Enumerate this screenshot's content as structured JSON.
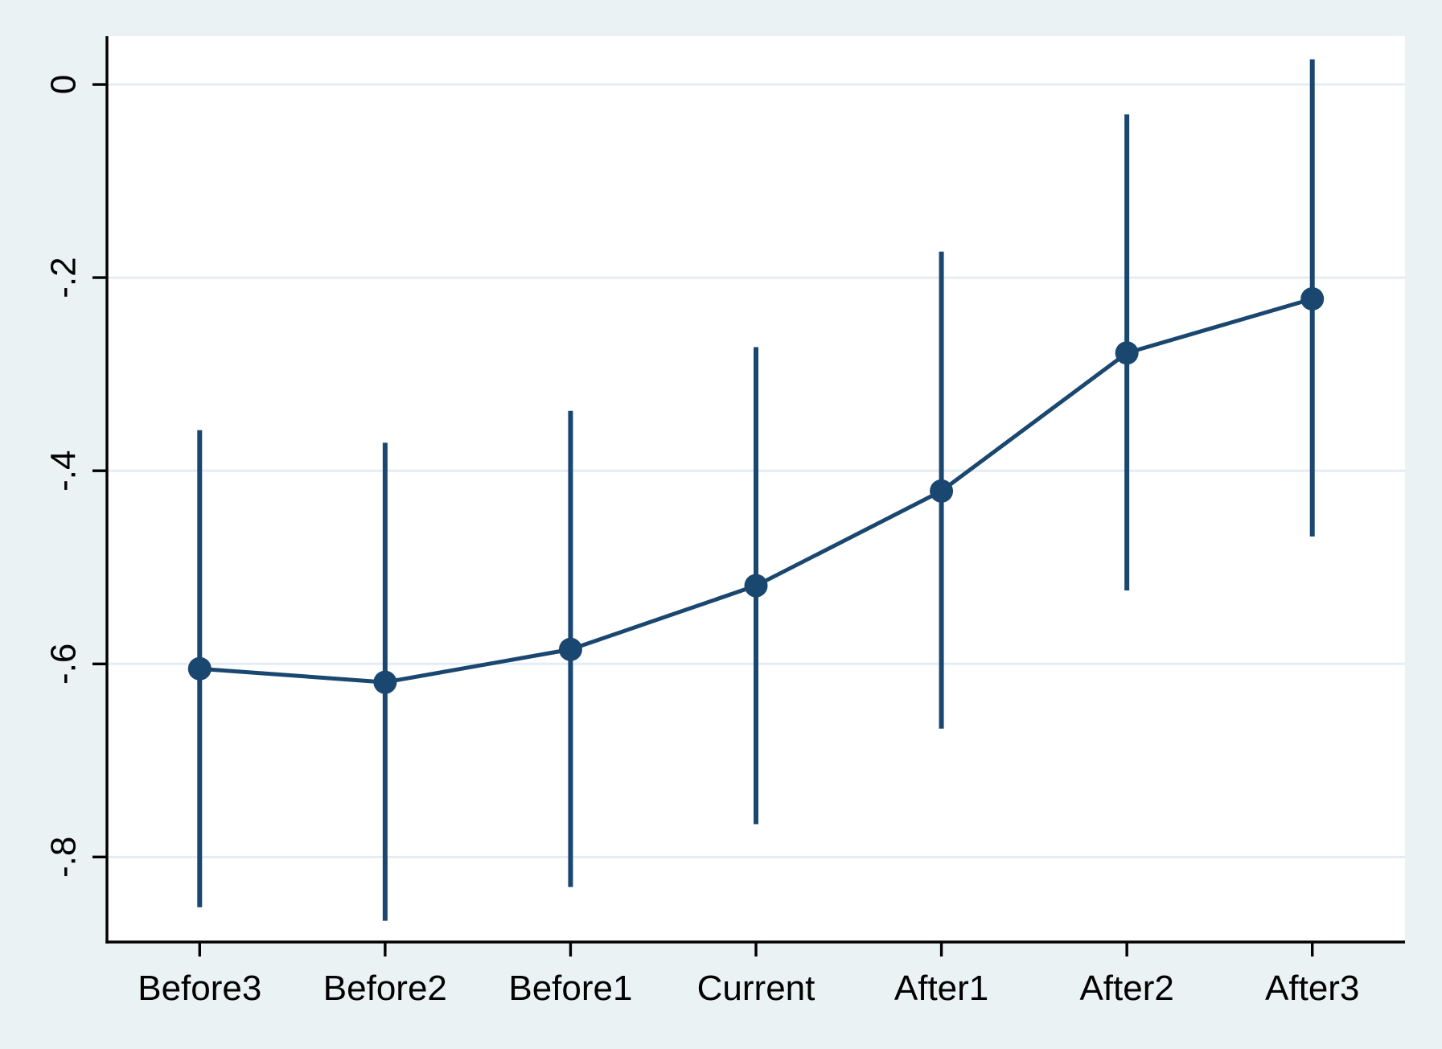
{
  "chart_data": {
    "type": "line",
    "subtype": "point-estimates-with-ci-spikes",
    "title": "",
    "xlabel": "",
    "ylabel": "",
    "categories": [
      "Before3",
      "Before2",
      "Before1",
      "Current",
      "After1",
      "After2",
      "After3"
    ],
    "series": [
      {
        "name": "estimate",
        "values": [
          -0.605,
          -0.619,
          -0.585,
          -0.519,
          -0.421,
          -0.278,
          -0.222
        ]
      },
      {
        "name": "ci_lower",
        "values": [
          -0.852,
          -0.866,
          -0.831,
          -0.766,
          -0.667,
          -0.524,
          -0.468
        ]
      },
      {
        "name": "ci_upper",
        "values": [
          -0.358,
          -0.371,
          -0.338,
          -0.272,
          -0.173,
          -0.031,
          0.026
        ]
      }
    ],
    "yticks": {
      "values": [
        0,
        -0.2,
        -0.4,
        -0.6,
        -0.8
      ],
      "labels": [
        "0",
        "-.2",
        "-.4",
        "-.6",
        "-.8"
      ]
    },
    "ylim": [
      -0.888,
      0.05
    ],
    "grid": "horizontal",
    "legend": "none",
    "colors": {
      "series": "#1A476F",
      "background": "#EAF2F3",
      "plot_background": "#FFFFFF",
      "gridline": "#E4EDF3",
      "axis": "#000000",
      "text": "#000000"
    }
  }
}
